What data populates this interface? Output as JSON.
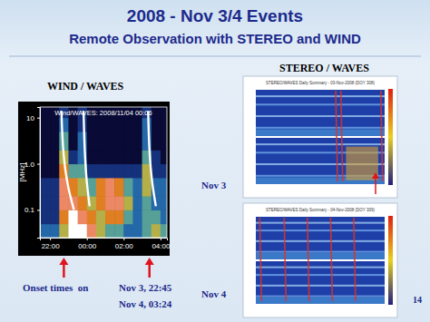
{
  "slide": {
    "title": "2008 - Nov 3/4 Events",
    "subtitle": "Remote Observation with STEREO and WIND",
    "wind_label": "WIND / WAVES",
    "stereo_label": "STEREO / WAVES",
    "stereo_titles": [
      "STEREO/WAVES Daily Summary - 03-Nov-2008 (DOY 308)",
      "STEREO/WAVES Daily Summary - 04-Nov-2008 (DOY 309)"
    ],
    "day_labels": [
      "Nov 3",
      "Nov 4"
    ],
    "onset_heading": "Onset times  on",
    "onset_labels": [
      "Nov 3, 22:45",
      "Nov 4, 03:24"
    ],
    "page_number": "14"
  },
  "chart_data": {
    "type": "heatmap",
    "title": "Wind/WAVES: 2008/11/04 00:06",
    "y_label": "[MHz]",
    "log": "y",
    "xlim": [
      21.45,
      28.35
    ],
    "ylim": [
      0.025,
      17
    ],
    "xticks": [
      {
        "value": 22,
        "label": "22:00"
      },
      {
        "value": 24,
        "label": "00:00"
      },
      {
        "value": 26,
        "label": "02:00"
      },
      {
        "value": 28,
        "label": "04:00"
      }
    ],
    "yticks": [
      10,
      {
        "value": 1,
        "label": "1.0"
      },
      {
        "value": 0.1,
        "label": "0.1"
      }
    ],
    "x_bins": [
      21.5,
      22,
      22.5,
      23,
      23.5,
      24,
      24.5,
      25,
      25.5,
      26,
      26.5,
      27,
      27.5,
      28,
      28.5
    ],
    "y_bins": [
      0.025,
      0.05,
      0.1,
      0.2,
      0.5,
      1,
      2,
      5,
      10,
      17
    ],
    "cells": [
      [
        3,
        3,
        5,
        8,
        8,
        7,
        5,
        4,
        4,
        3,
        3,
        4,
        5,
        4
      ],
      [
        2,
        2,
        6,
        8,
        7,
        6,
        5,
        6,
        6,
        4,
        3,
        4,
        4,
        3
      ],
      [
        2,
        2,
        7,
        7,
        6,
        5,
        6,
        7,
        7,
        5,
        3,
        4,
        3,
        3
      ],
      [
        2,
        2,
        7,
        6,
        5,
        4,
        6,
        7,
        6,
        4,
        3,
        5,
        3,
        3
      ],
      [
        1,
        1,
        6,
        4,
        4,
        2,
        2,
        2,
        2,
        2,
        2,
        5,
        2,
        2
      ],
      [
        1,
        1,
        5,
        2,
        3,
        1,
        1,
        1,
        1,
        1,
        1,
        4,
        2,
        1
      ],
      [
        1,
        1,
        4,
        1,
        3,
        1,
        1,
        1,
        1,
        1,
        1,
        3,
        1,
        1
      ],
      [
        1,
        1,
        3,
        1,
        2,
        1,
        1,
        1,
        1,
        1,
        1,
        3,
        1,
        1
      ],
      [
        1,
        1,
        2,
        1,
        2,
        1,
        1,
        1,
        1,
        1,
        1,
        2,
        1,
        1
      ]
    ],
    "series": [
      {
        "type": "line",
        "color": "#ffffff",
        "x": [
          22.62,
          22.66,
          22.72,
          22.82,
          23.0,
          23.3
        ],
        "values": [
          14,
          5,
          2,
          0.8,
          0.3,
          0.1
        ]
      },
      {
        "type": "line",
        "color": "#ffffff",
        "x": [
          23.82,
          23.85,
          23.9,
          24.0,
          24.15
        ],
        "values": [
          14,
          5,
          1.5,
          0.4,
          0.12
        ]
      },
      {
        "type": "line",
        "color": "#ffffff",
        "x": [
          27.33,
          27.36,
          27.42,
          27.55,
          27.75
        ],
        "values": [
          14,
          5,
          1.5,
          0.4,
          0.12
        ]
      }
    ],
    "onsets": [
      22.75,
      27.4
    ]
  }
}
